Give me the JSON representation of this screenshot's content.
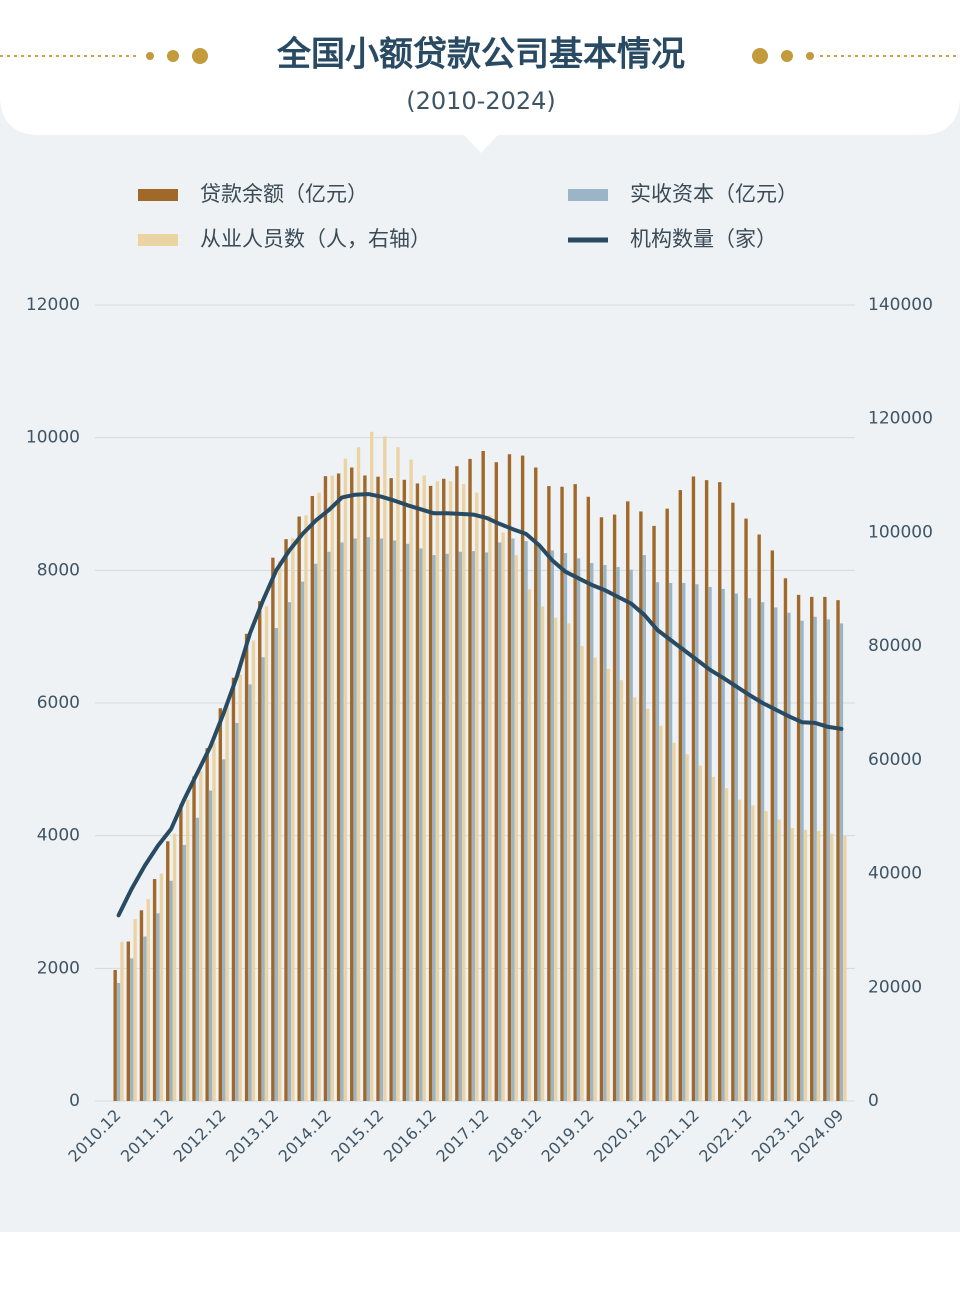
{
  "chart_data": {
    "type": "bar",
    "title": "全国小额贷款公司基本情况",
    "subtitle": "(2010-2024)",
    "categories": [
      "2010.12",
      null,
      null,
      null,
      "2011.12",
      null,
      null,
      null,
      "2012.12",
      null,
      null,
      null,
      "2013.12",
      null,
      null,
      null,
      "2014.12",
      null,
      null,
      null,
      "2015.12",
      null,
      null,
      null,
      "2016.12",
      null,
      null,
      null,
      "2017.12",
      null,
      null,
      null,
      "2018.12",
      null,
      null,
      null,
      "2019.12",
      null,
      null,
      null,
      "2020.12",
      null,
      null,
      null,
      "2021.12",
      null,
      null,
      null,
      "2022.12",
      null,
      null,
      null,
      "2023.12",
      null,
      null,
      "2024.09"
    ],
    "series": [
      {
        "name": "贷款余额（亿元）",
        "color": "#a0692a",
        "type": "bar",
        "values": [
          1975,
          2405,
          2875,
          3346,
          3915,
          4470,
          4893,
          5319,
          5921,
          6381,
          7043,
          7536,
          8191,
          8470,
          8811,
          9120,
          9420,
          9460,
          9550,
          9430,
          9412,
          9390,
          9365,
          9310,
          9273,
          9380,
          9570,
          9680,
          9799,
          9630,
          9750,
          9730,
          9550,
          9270,
          9260,
          9300,
          9109,
          8800,
          8840,
          9040,
          8888,
          8670,
          8930,
          9210,
          9415,
          9360,
          9330,
          9020,
          8780,
          8540,
          8300,
          7880,
          7630,
          7600,
          7600,
          7550
        ]
      },
      {
        "name": "实收资本（亿元）",
        "color": "#9bb5c6",
        "type": "bar",
        "values": [
          1780,
          2150,
          2480,
          2830,
          3320,
          3860,
          4270,
          4680,
          5150,
          5700,
          6280,
          6690,
          7130,
          7520,
          7830,
          8100,
          8280,
          8420,
          8480,
          8500,
          8480,
          8450,
          8400,
          8330,
          8230,
          8250,
          8280,
          8290,
          8270,
          8420,
          8480,
          8440,
          8360,
          8300,
          8260,
          8180,
          8110,
          8080,
          8050,
          8010,
          8230,
          7820,
          7810,
          7810,
          7790,
          7750,
          7720,
          7650,
          7580,
          7520,
          7440,
          7360,
          7240,
          7300,
          7260,
          7200
        ]
      },
      {
        "name": "从业人员数（人，右轴）",
        "color": "#ecd3a3",
        "type": "bar",
        "axis": "y2",
        "values": [
          28000,
          32000,
          35500,
          40000,
          47000,
          53000,
          58000,
          63000,
          70000,
          75000,
          81000,
          87000,
          95000,
          99000,
          103000,
          107000,
          110000,
          113000,
          115000,
          117700,
          116900,
          115000,
          112800,
          110000,
          109000,
          109000,
          108500,
          107000,
          103000,
          100000,
          96000,
          90000,
          87000,
          85000,
          84000,
          80000,
          78000,
          76000,
          74000,
          71000,
          69000,
          66000,
          63000,
          61000,
          59000,
          57000,
          55000,
          53000,
          52000,
          51000,
          49500,
          48000,
          47700,
          47500,
          47000,
          46600
        ]
      },
      {
        "name": "机构数量（家）",
        "color": "#284a63",
        "type": "line",
        "values": [
          2800,
          3200,
          3550,
          3850,
          4100,
          4550,
          4950,
          5350,
          5850,
          6400,
          7050,
          7550,
          8000,
          8300,
          8550,
          8750,
          8910,
          9100,
          9140,
          9150,
          9110,
          9050,
          8980,
          8920,
          8860,
          8860,
          8850,
          8840,
          8790,
          8700,
          8620,
          8550,
          8380,
          8150,
          7980,
          7880,
          7780,
          7700,
          7600,
          7500,
          7330,
          7100,
          6950,
          6800,
          6650,
          6500,
          6380,
          6250,
          6120,
          6000,
          5900,
          5800,
          5710,
          5700,
          5640,
          5610
        ]
      }
    ],
    "ylim": [
      0,
      12000
    ],
    "yticks": [
      0,
      2000,
      4000,
      6000,
      8000,
      10000,
      12000
    ],
    "y2lim": [
      0,
      140000
    ],
    "y2ticks": [
      0,
      20000,
      40000,
      60000,
      80000,
      100000,
      120000,
      140000
    ],
    "grid": true,
    "legend": "top"
  }
}
